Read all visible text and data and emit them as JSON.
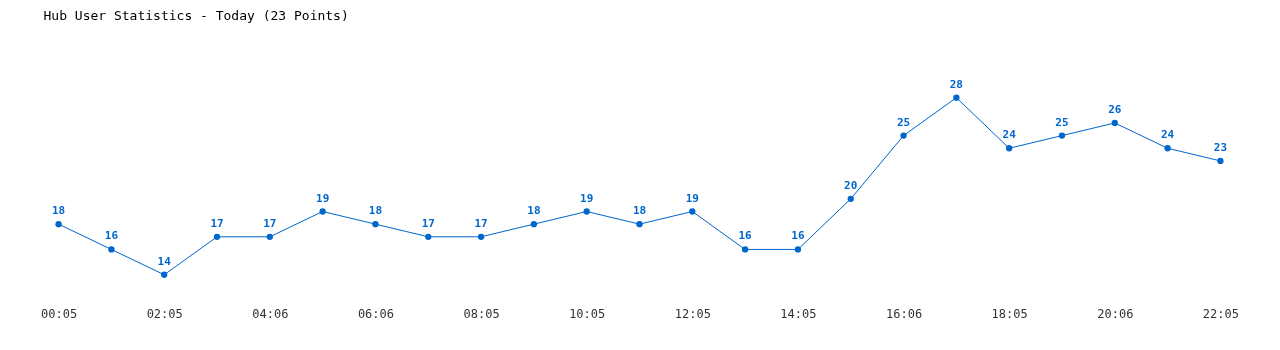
{
  "chart_data": {
    "type": "line",
    "title": "Hub User Statistics - Today (23 Points)",
    "categories": [
      "00:05",
      null,
      "02:05",
      null,
      "04:06",
      null,
      "06:06",
      null,
      "08:05",
      null,
      "10:05",
      null,
      "12:05",
      null,
      "14:05",
      null,
      "16:06",
      null,
      "18:05",
      null,
      "20:06",
      null,
      "22:05"
    ],
    "series": [
      {
        "color": "#0066cc",
        "values": [
          18,
          16,
          14,
          17,
          17,
          19,
          18,
          17,
          17,
          18,
          19,
          18,
          19,
          16,
          16,
          20,
          25,
          28,
          24,
          25,
          26,
          24,
          23
        ]
      }
    ],
    "data_labels": true,
    "marker": "circle",
    "grid": false,
    "tick_labels": "x"
  }
}
